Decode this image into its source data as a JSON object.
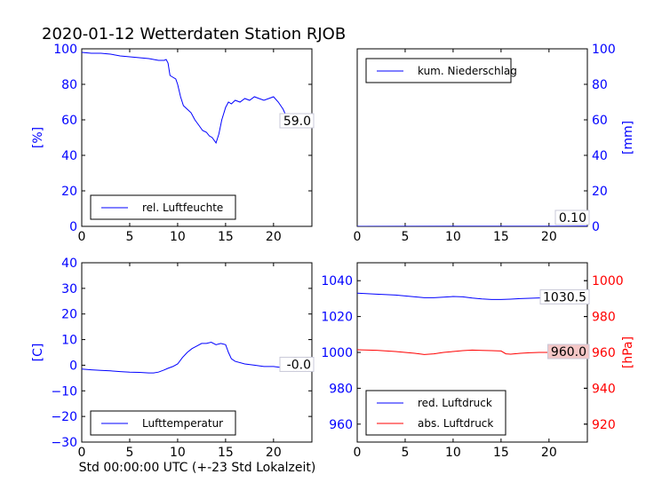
{
  "title": "2020-01-12 Wetterdaten Station RJOB",
  "xlabel": "Std 00:00:00 UTC (+-23 Std Lokalzeit)",
  "chart_data": [
    {
      "type": "line",
      "ylabel": "[%]",
      "ylabel_color": "#0000ff",
      "xlim": [
        0,
        24
      ],
      "ylim": [
        0,
        100
      ],
      "xticks": [
        "0",
        "5",
        "10",
        "15",
        "20"
      ],
      "yticks": [
        "0",
        "20",
        "40",
        "60",
        "80",
        "100"
      ],
      "legend": "bottom-left",
      "last_value_label": "59.0",
      "series": [
        {
          "name": "rel. Luftfeuchte",
          "color": "#0000ff",
          "x": [
            0,
            1,
            2,
            3,
            4,
            5,
            6,
            7,
            8,
            8.6,
            8.8,
            9.0,
            9.2,
            9.5,
            9.8,
            10.0,
            10.3,
            10.6,
            11.0,
            11.4,
            11.8,
            12.2,
            12.6,
            13.0,
            13.3,
            13.6,
            14.0,
            14.3,
            14.6,
            15.0,
            15.3,
            15.6,
            16.0,
            16.5,
            17.0,
            17.5,
            18.0,
            18.5,
            19.0,
            19.5,
            20.0,
            20.5,
            21.0,
            21.5,
            22.0,
            22.5,
            23.0,
            23.5,
            24.0
          ],
          "values": [
            98,
            97.5,
            97.5,
            97,
            96,
            95.5,
            95,
            94.5,
            93.5,
            93.5,
            94,
            92,
            85,
            84,
            83,
            80,
            73,
            68,
            66,
            64,
            60,
            57,
            54,
            53,
            51,
            50,
            47,
            52,
            60,
            67,
            70,
            69,
            71,
            70,
            72,
            71,
            73,
            72,
            71,
            72,
            73,
            70,
            66,
            60,
            59,
            59,
            59,
            59,
            59
          ]
        }
      ]
    },
    {
      "type": "line",
      "ylabel": "[mm]",
      "ylabel_color": "#0000ff",
      "xlim": [
        0,
        24
      ],
      "ylim": [
        0,
        100
      ],
      "xticks": [
        "0",
        "5",
        "10",
        "15",
        "20"
      ],
      "yticks": [
        "0",
        "20",
        "40",
        "60",
        "80",
        "100"
      ],
      "yaxis_side": "right",
      "legend": "top-left",
      "last_value_label": "0.10",
      "series": [
        {
          "name": "kum. Niederschlag",
          "color": "#0000ff",
          "x": [
            0,
            24
          ],
          "values": [
            0,
            0.1
          ]
        }
      ]
    },
    {
      "type": "line",
      "ylabel": "[C]",
      "ylabel_color": "#0000ff",
      "xlim": [
        0,
        24
      ],
      "ylim": [
        -30,
        40
      ],
      "xticks": [
        "0",
        "5",
        "10",
        "15",
        "20"
      ],
      "yticks": [
        "−30",
        "−20",
        "−10",
        "0",
        "10",
        "20",
        "30",
        "40"
      ],
      "legend": "bottom-left",
      "last_value_label": "-0.0",
      "series": [
        {
          "name": "Lufttemperatur",
          "color": "#0000ff",
          "x": [
            0,
            1,
            2,
            3,
            4,
            5,
            6,
            7,
            7.5,
            8,
            8.5,
            9,
            9.5,
            10,
            10.5,
            11,
            11.5,
            12,
            12.5,
            13,
            13.5,
            14,
            14.5,
            15,
            15.3,
            15.6,
            16,
            17,
            18,
            19,
            20,
            21,
            22,
            23,
            24
          ],
          "values": [
            -1.5,
            -1.8,
            -2,
            -2.2,
            -2.5,
            -2.7,
            -2.8,
            -3,
            -3,
            -2.7,
            -2,
            -1.2,
            -0.5,
            0.5,
            3,
            5,
            6.5,
            7.5,
            8.5,
            8.5,
            9,
            8,
            8.5,
            8,
            5,
            2.5,
            1.5,
            0.5,
            0,
            -0.5,
            -0.5,
            -1,
            0,
            0,
            0
          ]
        }
      ]
    },
    {
      "type": "line",
      "ylabel": "[hPa]",
      "ylabel_color": "#ff0000",
      "xlim": [
        0,
        24
      ],
      "ylim_left": [
        950,
        1050
      ],
      "ylim_right": [
        910,
        1010
      ],
      "xticks": [
        "0",
        "5",
        "10",
        "15",
        "20"
      ],
      "yticks_left": [
        "960",
        "980",
        "1000",
        "1020",
        "1040"
      ],
      "yticks_right": [
        "920",
        "940",
        "960",
        "980",
        "1000"
      ],
      "legend": "bottom-left",
      "last_value_labels": [
        "1030.5",
        "960.0"
      ],
      "series": [
        {
          "name": "red. Luftdruck",
          "color": "#0000ff",
          "x": [
            0,
            2,
            4,
            6,
            7,
            8,
            9,
            10,
            11,
            12,
            13,
            14,
            15,
            16,
            17,
            18,
            19,
            20,
            21,
            22,
            23,
            24
          ],
          "values": [
            1033,
            1032.5,
            1032,
            1031,
            1030.5,
            1030.5,
            1030.8,
            1031.2,
            1031,
            1030.3,
            1029.8,
            1029.5,
            1029.5,
            1029.7,
            1030,
            1030.2,
            1030.4,
            1030.6,
            1030.6,
            1030.5,
            1030.5,
            1030.5
          ]
        },
        {
          "name": "abs. Luftdruck",
          "color": "#ff0000",
          "x": [
            0,
            2,
            4,
            6,
            7,
            8,
            9,
            10,
            11,
            12,
            13,
            14,
            15,
            15.5,
            16,
            17,
            18,
            19,
            20,
            21,
            22,
            23,
            24
          ],
          "values": [
            961.5,
            961.2,
            960.5,
            959.5,
            958.8,
            959.2,
            960,
            960.5,
            961,
            961.3,
            961.1,
            961,
            960.8,
            959.2,
            959,
            959.5,
            959.8,
            960,
            960,
            960,
            960,
            960,
            960
          ]
        }
      ]
    }
  ]
}
